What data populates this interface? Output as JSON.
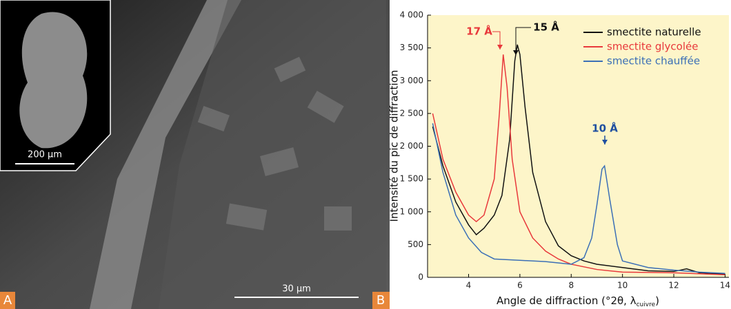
{
  "image_labels": {
    "panel_a": "A",
    "panel_b": "B",
    "inset_scale": "200 µm",
    "main_scale": "30 µm"
  },
  "chart_data": {
    "type": "line",
    "y_label": "Intensité du pic de diffraction",
    "x_label": "Angle de diffraction (°2θ, λ",
    "x_label_sub": "cuivre",
    "x_label_end": ")",
    "xlim": [
      2.4,
      14.15
    ],
    "xticks": [
      4,
      6,
      8,
      10,
      12,
      14
    ],
    "ylim": [
      0,
      4000
    ],
    "yticks": [
      0,
      500,
      {
        "value": 1000,
        "label": "1 000"
      },
      {
        "value": 1500,
        "label": "1 500"
      },
      {
        "value": 2000,
        "label": "2 000"
      },
      {
        "value": 2500,
        "label": "2 500"
      },
      {
        "value": 3000,
        "label": "3 000"
      },
      {
        "value": 3500,
        "label": "3 500"
      },
      {
        "value": 4000,
        "label": "4 000"
      }
    ],
    "background": "#fdf5c9",
    "series": [
      {
        "name": "smectite naturelle",
        "color": "#111111",
        "x": [
          2.6,
          3,
          3.5,
          4,
          4.3,
          4.6,
          5,
          5.3,
          5.6,
          5.8,
          5.9,
          6.0,
          6.2,
          6.5,
          7,
          7.5,
          8,
          8.5,
          9,
          10,
          11,
          12,
          12.5,
          13,
          14
        ],
        "values": [
          2300,
          1700,
          1150,
          800,
          650,
          750,
          950,
          1250,
          2100,
          3300,
          3550,
          3400,
          2600,
          1600,
          850,
          480,
          330,
          250,
          200,
          150,
          100,
          90,
          130,
          70,
          50
        ]
      },
      {
        "name": "smectite glycolée",
        "color": "#e8383b",
        "x": [
          2.6,
          3,
          3.5,
          4,
          4.3,
          4.6,
          5,
          5.2,
          5.35,
          5.5,
          5.7,
          6,
          6.5,
          7,
          7.5,
          8,
          9,
          10,
          12,
          14
        ],
        "values": [
          2500,
          1800,
          1300,
          950,
          850,
          950,
          1500,
          2500,
          3400,
          2900,
          1800,
          1000,
          600,
          400,
          280,
          200,
          120,
          80,
          70,
          40
        ]
      },
      {
        "name": "smectite chauffée",
        "color": "#3b6fb6",
        "x": [
          2.6,
          3,
          3.5,
          4,
          4.5,
          5,
          6,
          7,
          8,
          8.5,
          8.8,
          9.0,
          9.2,
          9.3,
          9.5,
          9.8,
          10,
          11,
          12,
          13,
          14
        ],
        "values": [
          2350,
          1600,
          950,
          600,
          380,
          280,
          260,
          240,
          200,
          300,
          600,
          1100,
          1650,
          1700,
          1200,
          500,
          250,
          150,
          110,
          80,
          60
        ]
      }
    ],
    "annotations": [
      {
        "text": "17 Å",
        "color": "#e8383b"
      },
      {
        "text": "15 Å",
        "color": "#111111"
      },
      {
        "text": "10 Å",
        "color": "#1f4fa0"
      }
    ]
  }
}
